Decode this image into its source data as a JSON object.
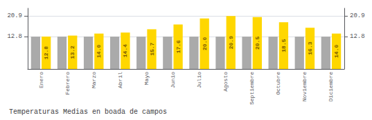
{
  "chart_data": {
    "type": "bar",
    "title": "Temperaturas Medias en boada de campos",
    "categories": [
      "Enero",
      "Febrero",
      "Marzo",
      "Abril",
      "Mayo",
      "Junio",
      "Julio",
      "Agosto",
      "Septiembre",
      "Octubre",
      "Noviembre",
      "Diciembre"
    ],
    "series": [
      {
        "color": "#AAAAAA",
        "values": [
          12.8,
          12.8,
          12.8,
          12.8,
          12.8,
          12.8,
          12.8,
          12.8,
          12.8,
          12.8,
          12.8,
          12.8
        ]
      },
      {
        "color": "#FFD700",
        "data_labels": true,
        "values": [
          12.8,
          13.2,
          14.0,
          14.4,
          15.7,
          17.6,
          20.0,
          20.9,
          20.5,
          18.5,
          16.3,
          14.0
        ],
        "value_labels": [
          "12.8",
          "13.2",
          "14.0",
          "14.4",
          "15.7",
          "17.6",
          "20.0",
          "20.9",
          "20.5",
          "18.5",
          "16.3",
          "14.0"
        ]
      }
    ],
    "ylim": [
      0,
      24.0
    ],
    "yticks": [
      12.8,
      20.9
    ],
    "y2lim": [
      0,
      24.0
    ],
    "y2ticks": [
      12.8,
      20.9
    ],
    "grid": true
  }
}
